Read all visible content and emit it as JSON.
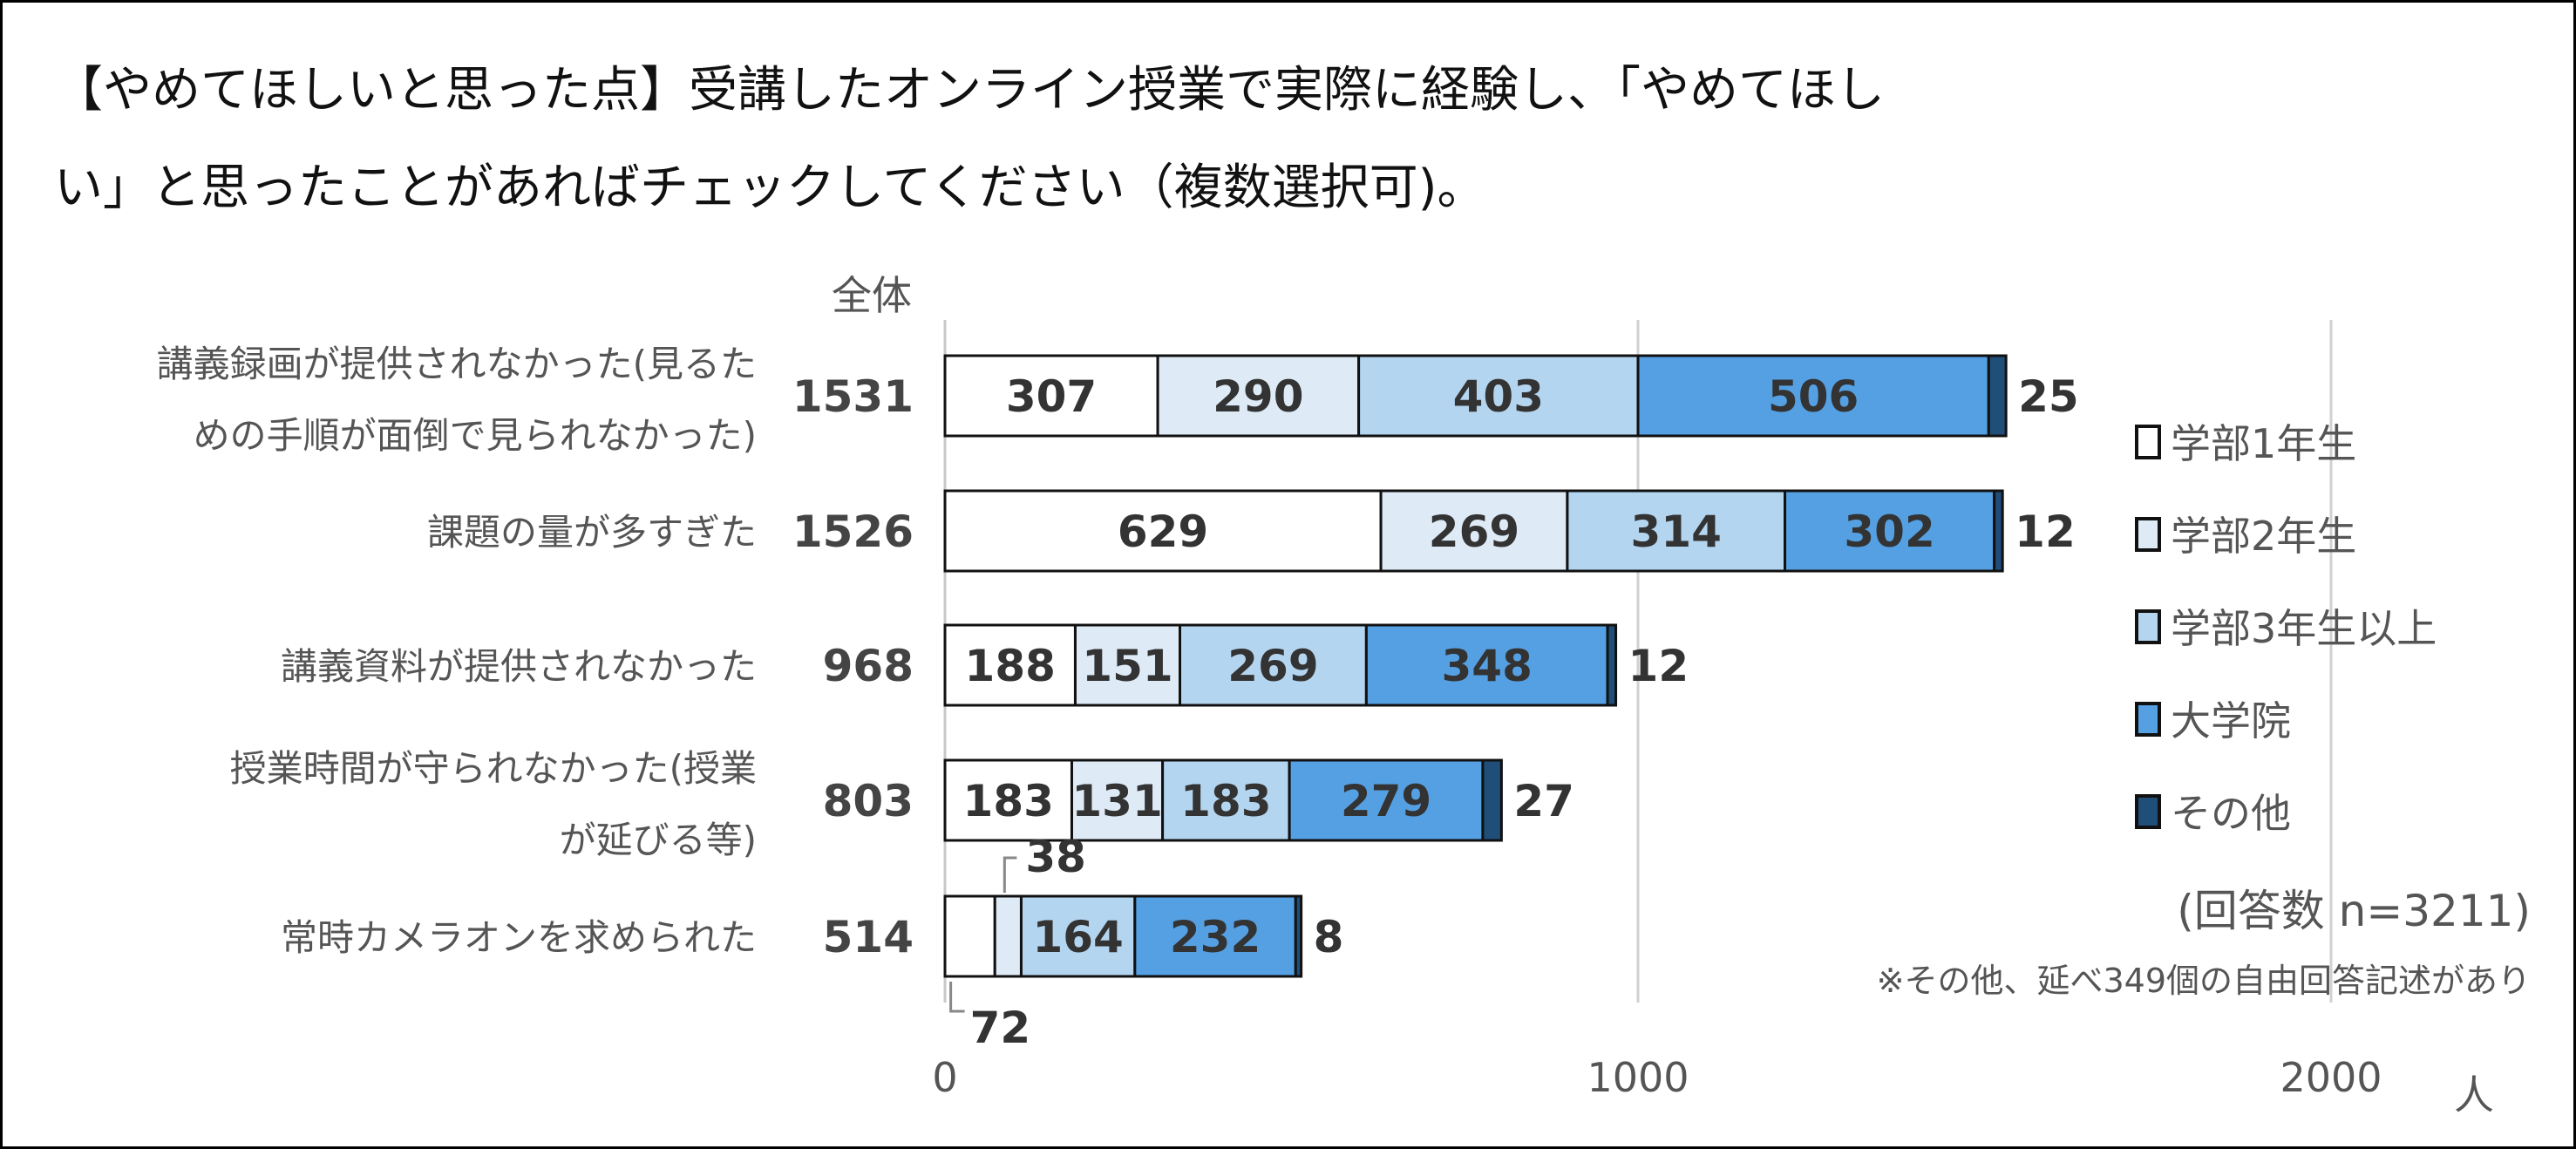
{
  "title_lines": [
    "【やめてほしいと思った点】受講したオンライン授業で実際に経験し、「やめてほし",
    "い」と思ったことがあればチェックしてください（複数選択可)。"
  ],
  "chart_data": {
    "type": "bar",
    "orientation": "horizontal",
    "stacked": true,
    "total_header": "全体",
    "categories": [
      [
        "講義録画が提供されなかった(見るた",
        "めの手順が面倒で見られなかった)"
      ],
      [
        "課題の量が多すぎた"
      ],
      [
        "講義資料が提供されなかった"
      ],
      [
        "授業時間が守られなかった(授業",
        "が延びる等)"
      ],
      [
        "常時カメラオンを求められた"
      ]
    ],
    "totals": [
      1531,
      1526,
      968,
      803,
      514
    ],
    "series": [
      {
        "name": "学部1年生",
        "color": "#ffffff",
        "values": [
          307,
          629,
          188,
          183,
          72
        ]
      },
      {
        "name": "学部2年生",
        "color": "#deebf7",
        "values": [
          290,
          269,
          151,
          131,
          38
        ]
      },
      {
        "name": "学部3年生以上",
        "color": "#b4d5f0",
        "values": [
          403,
          314,
          269,
          183,
          164
        ]
      },
      {
        "name": "大学院",
        "color": "#55a0e3",
        "values": [
          506,
          302,
          348,
          279,
          232
        ]
      },
      {
        "name": "その他",
        "color": "#1f4e79",
        "values": [
          25,
          12,
          12,
          27,
          8
        ]
      }
    ],
    "xlim": [
      0,
      2300
    ],
    "xticks": [
      0,
      1000,
      2000
    ],
    "xlabel": "人",
    "grid": true,
    "legend_position": "right",
    "annotations": [
      "(回答数 n=3211)",
      "※その他、延べ349個の自由回答記述があり"
    ]
  }
}
